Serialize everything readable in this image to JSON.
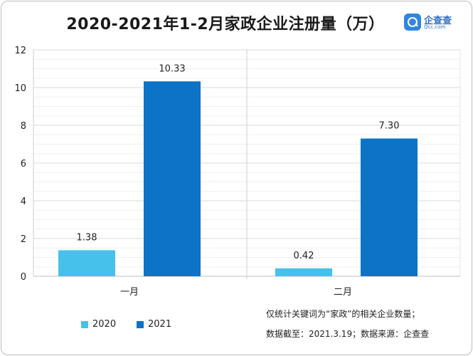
{
  "chart_data": {
    "type": "bar",
    "title": "2020-2021年1-2月家政企业注册量（万）",
    "categories": [
      "一月",
      "二月"
    ],
    "series": [
      {
        "name": "2020",
        "values": [
          1.38,
          0.42
        ],
        "labels": [
          "1.38",
          "0.42"
        ],
        "color": "#45c1ec"
      },
      {
        "name": "2021",
        "values": [
          10.33,
          7.3
        ],
        "labels": [
          "10.33",
          "7.30"
        ],
        "color": "#0c73c6"
      }
    ],
    "ylim": [
      0,
      12
    ],
    "yticks": [
      0,
      2,
      4,
      6,
      8,
      10,
      12
    ],
    "xlabel": "",
    "ylabel": "",
    "grid": true,
    "legend": "bottom-left"
  },
  "logo": {
    "name": "企查查",
    "domain": "Qcc.com"
  },
  "notes": [
    "仅统计关键词为“家政”的相关企业数量；",
    "数据截至：2021.3.19；数据来源：企查查"
  ]
}
